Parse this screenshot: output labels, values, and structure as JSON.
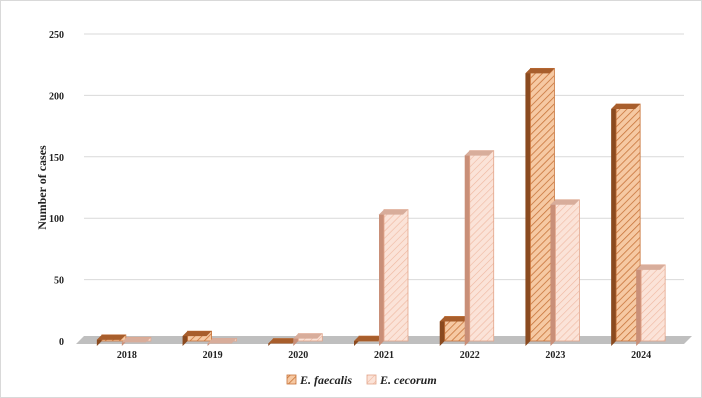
{
  "chart_data": {
    "type": "bar",
    "title": "",
    "xlabel": "",
    "ylabel": "Number of cases",
    "ylim": [
      0,
      250
    ],
    "yticks": [
      0,
      50,
      100,
      150,
      200,
      250
    ],
    "grid": true,
    "legend_position": "bottom",
    "categories": [
      "2018",
      "2019",
      "2020",
      "2021",
      "2022",
      "2023",
      "2024"
    ],
    "series": [
      {
        "name": "E. faecalis",
        "values": [
          5,
          8,
          2,
          4,
          20,
          222,
          193
        ],
        "color": "#c8743a",
        "fill": "#f6c9a3"
      },
      {
        "name": "E. cecorum",
        "values": [
          3,
          2,
          6,
          107,
          155,
          115,
          62
        ],
        "color": "#e3a58a",
        "fill": "#fbe3d8"
      }
    ]
  }
}
